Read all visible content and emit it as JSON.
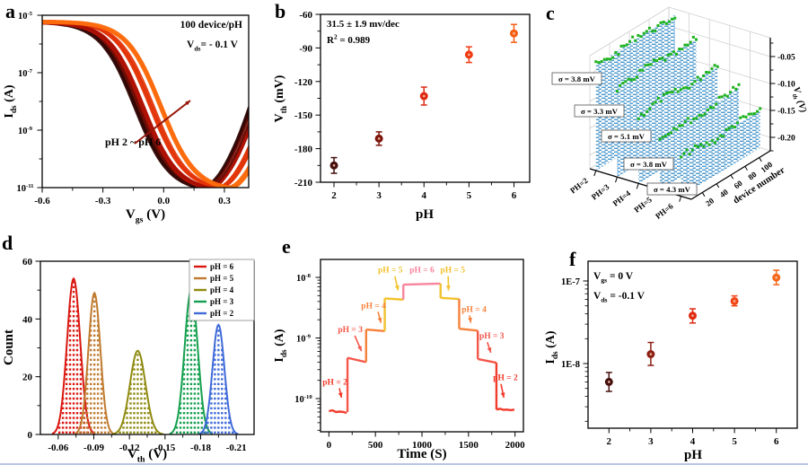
{
  "figure": {
    "panel_labels": [
      "a",
      "b",
      "c",
      "d",
      "e",
      "f"
    ],
    "background": "#ffffff",
    "bottom_rule_color": "#b9c7e6"
  },
  "chart_data": [
    {
      "panel": "a",
      "type": "line",
      "log_y": true,
      "xlabel": {
        "pre": "V",
        "sub": "gs",
        "post": " (V)"
      },
      "ylabel": {
        "pre": "I",
        "sub": "ds",
        "post": " (A)"
      },
      "xlim": [
        -0.6,
        0.42
      ],
      "ylim_exp": [
        -11,
        -5
      ],
      "x_ticks": [
        {
          "v": -0.6,
          "label": "-0.6"
        },
        {
          "v": -0.3,
          "label": "-0.3"
        },
        {
          "v": 0.0,
          "label": "0.0"
        },
        {
          "v": 0.3,
          "label": "0.3"
        }
      ],
      "x_minor_ticks": [
        -0.45,
        -0.15,
        0.15
      ],
      "y_ticks": [
        {
          "exp": -5,
          "label_exp": "-5"
        },
        {
          "exp": -7,
          "label_exp": "-7"
        },
        {
          "exp": -9,
          "label_exp": "-9"
        },
        {
          "exp": -11,
          "label_exp": "-11"
        }
      ],
      "y_minor_ticks": [
        -6,
        -8,
        -10
      ],
      "annotation_device": "100 device/pH",
      "annotation_vds": {
        "pre": "V",
        "sub": "ds",
        "post": "= - 0.1 V"
      },
      "annotation_range": "pH 2 ~ pH 6",
      "arrow_color": "#97150a",
      "curves_per_series": 8,
      "series": [
        {
          "name": "pH 2",
          "color": "#310806",
          "center": -0.135
        },
        {
          "name": "pH 3",
          "color": "#6e0e06",
          "center": -0.118
        },
        {
          "name": "pH 4",
          "color": "#b01205",
          "center": -0.098
        },
        {
          "name": "pH 5",
          "color": "#e33509",
          "center": -0.06
        },
        {
          "name": "pH 6",
          "color": "#fc6c0e",
          "center": -0.015
        }
      ]
    },
    {
      "panel": "b",
      "type": "scatter",
      "annotation_sensitivity": "31.5  ± 1.9 mv/dec",
      "annotation_r2": {
        "pre": "R",
        "sup": "2",
        "post": " = 0.989"
      },
      "xlabel": "pH",
      "ylabel": {
        "pre": "V",
        "sub": "th",
        "post": " (mV)"
      },
      "xlim": [
        1.7,
        6.35
      ],
      "ylim": [
        -210,
        -60
      ],
      "x_ticks": [
        {
          "v": 2,
          "label": "2"
        },
        {
          "v": 3,
          "label": "3"
        },
        {
          "v": 4,
          "label": "4"
        },
        {
          "v": 5,
          "label": "5"
        },
        {
          "v": 6,
          "label": "6"
        }
      ],
      "y_ticks": [
        {
          "v": -60,
          "label": "-60"
        },
        {
          "v": -90,
          "label": "-90"
        },
        {
          "v": -120,
          "label": "-120"
        },
        {
          "v": -150,
          "label": "-150"
        },
        {
          "v": -180,
          "label": "-180"
        },
        {
          "v": -210,
          "label": "-210"
        }
      ],
      "x": [
        2,
        3,
        4,
        5,
        6
      ],
      "y": [
        -195,
        -171,
        -133,
        -96,
        -77
      ],
      "yerr": [
        7,
        6,
        8,
        7,
        8
      ],
      "colors": [
        "#45100d",
        "#7e150c",
        "#e02a12",
        "#f03b12",
        "#f75d12"
      ]
    },
    {
      "panel": "c",
      "type": "3d-waterfall",
      "sigma_labels": [
        "σ = 3.8 mV",
        "σ = 3.3 mV",
        "σ = 5.1 mV",
        "σ = 3.8 mV",
        "σ = 4.3 mV"
      ],
      "ph_labels": [
        "PH=2",
        "PH=3",
        "PH=4",
        "PH=5",
        "PH=6"
      ],
      "device_ticks": [
        "20",
        "40",
        "60",
        "80",
        "100"
      ],
      "device_axis_label": "device number",
      "zlabel": {
        "pre": "V",
        "sub": "th",
        "post": " (V)"
      },
      "z_ticks": [
        "-0.20",
        "-0.15",
        "-0.10",
        "-0.05"
      ],
      "vth_per_ph": [
        -0.195,
        -0.171,
        -0.133,
        -0.096,
        -0.077
      ],
      "curtain_color": "#3b8fc9",
      "marker_color": "#1db31d",
      "curtain_heights": [
        118,
        100,
        76,
        56,
        42
      ]
    },
    {
      "panel": "d",
      "type": "histogram",
      "xlabel": {
        "pre": "V",
        "sub": "th",
        "post": " (V)"
      },
      "ylabel": "Count",
      "xlim": [
        -0.045,
        -0.225
      ],
      "ylim": [
        0,
        60
      ],
      "x_ticks": [
        {
          "v": -0.06,
          "label": "-0.06"
        },
        {
          "v": -0.09,
          "label": "-0.09"
        },
        {
          "v": -0.12,
          "label": "-0.12"
        },
        {
          "v": -0.15,
          "label": "-0.15"
        },
        {
          "v": -0.18,
          "label": "-0.18"
        },
        {
          "v": -0.21,
          "label": "-0.21"
        }
      ],
      "y_ticks": [
        {
          "v": 0,
          "label": "0"
        },
        {
          "v": 20,
          "label": "20"
        },
        {
          "v": 40,
          "label": "40"
        },
        {
          "v": 60,
          "label": "60"
        }
      ],
      "series": [
        {
          "label": "pH = 6",
          "color": "#da1710",
          "center": -0.073,
          "sigma": 0.0055,
          "height": 54
        },
        {
          "label": "pH = 5",
          "color": "#bf7a2e",
          "center": -0.0905,
          "sigma": 0.005,
          "height": 49
        },
        {
          "label": "pH = 4",
          "color": "#8f8a10",
          "center": -0.127,
          "sigma": 0.0065,
          "height": 29
        },
        {
          "label": "pH = 3",
          "color": "#14a04e",
          "center": -0.172,
          "sigma": 0.0055,
          "height": 50
        },
        {
          "label": "pH = 2",
          "color": "#3f6ad8",
          "center": -0.195,
          "sigma": 0.005,
          "height": 38
        }
      ]
    },
    {
      "panel": "e",
      "type": "step",
      "xlabel": "Time (S)",
      "ylabel": {
        "pre": "I",
        "sub": "ds",
        "post": " (A)"
      },
      "xlim": [
        -90,
        2090
      ],
      "x_ticks": [
        {
          "v": 0,
          "label": "0"
        },
        {
          "v": 500,
          "label": "500"
        },
        {
          "v": 1000,
          "label": "1000"
        },
        {
          "v": 1500,
          "label": "1500"
        },
        {
          "v": 2000,
          "label": "2000"
        }
      ],
      "x_minor_ticks": [
        250,
        750,
        1250,
        1750
      ],
      "y_ticks": [
        {
          "exp": -8,
          "label_exp": "-8"
        },
        {
          "exp": -9,
          "label_exp": "-9"
        },
        {
          "exp": -10,
          "label_exp": "-10"
        }
      ],
      "steps": [
        {
          "t0": 0,
          "t1": 200,
          "i0": 6.2e-11,
          "i1": 6e-11,
          "color": "#f23b2b",
          "noisy": true,
          "ph": "pH = 2"
        },
        {
          "t0": 200,
          "t1": 400,
          "i0": 4.7e-10,
          "i1": 4e-10,
          "color": "#f5564a",
          "noisy": false,
          "ph": "pH = 3"
        },
        {
          "t0": 400,
          "t1": 600,
          "i0": 1.38e-09,
          "i1": 1.3e-09,
          "color": "#f6813b",
          "noisy": false,
          "ph": "pH = 4"
        },
        {
          "t0": 600,
          "t1": 800,
          "i0": 4.5e-09,
          "i1": 4.3e-09,
          "color": "#f2c22e",
          "noisy": false,
          "ph": "pH = 5"
        },
        {
          "t0": 800,
          "t1": 1200,
          "i0": 7.6e-09,
          "i1": 7.9e-09,
          "color": "#f8849b",
          "noisy": false,
          "ph": "pH = 6"
        },
        {
          "t0": 1200,
          "t1": 1400,
          "i0": 4.6e-09,
          "i1": 4.4e-09,
          "color": "#f2c22e",
          "noisy": false,
          "ph": "pH = 5"
        },
        {
          "t0": 1400,
          "t1": 1600,
          "i0": 1.42e-09,
          "i1": 1.32e-09,
          "color": "#f6813b",
          "noisy": false,
          "ph": "pH = 4"
        },
        {
          "t0": 1600,
          "t1": 1800,
          "i0": 4.5e-10,
          "i1": 3.9e-10,
          "color": "#f5564a",
          "noisy": false,
          "ph": "pH = 3"
        },
        {
          "t0": 1800,
          "t1": 2000,
          "i0": 6.6e-11,
          "i1": 6.3e-11,
          "color": "#f23b2b",
          "noisy": true,
          "ph": "pH = 2"
        }
      ],
      "labels": [
        {
          "text": "pH = 2",
          "color": "#f23b2b",
          "t": 65,
          "i": 1.7e-10,
          "at": 135,
          "ai": 9e-11
        },
        {
          "text": "pH = 3",
          "color": "#f5564a",
          "t": 230,
          "i": 1.25e-09,
          "at": 350,
          "ai": 5.3e-10
        },
        {
          "text": "pH = 4",
          "color": "#f6813b",
          "t": 480,
          "i": 3.1e-09,
          "at": 560,
          "ai": 1.55e-09
        },
        {
          "text": "pH = 5",
          "color": "#f2c22e",
          "t": 660,
          "i": 1.2e-08,
          "at": 745,
          "ai": 5.3e-09
        },
        {
          "text": "pH = 6",
          "color": "#f8849b",
          "t": 1000,
          "i": 1.2e-08
        },
        {
          "text": "pH = 5",
          "color": "#f2c22e",
          "t": 1330,
          "i": 1.2e-08,
          "at": 1285,
          "ai": 5.3e-09
        },
        {
          "text": "pH = 4",
          "color": "#f6813b",
          "t": 1560,
          "i": 2.7e-09,
          "at": 1525,
          "ai": 1.55e-09
        },
        {
          "text": "pH = 3",
          "color": "#f5564a",
          "t": 1750,
          "i": 9.8e-10,
          "at": 1740,
          "ai": 5e-10
        },
        {
          "text": "pH = 2",
          "color": "#f23b2b",
          "t": 1897,
          "i": 2e-10,
          "at": 1880,
          "ai": 9e-11
        }
      ]
    },
    {
      "panel": "f",
      "type": "scatter-log",
      "annotation_vgs": {
        "pre": "V",
        "sub": "gs",
        "post": " = 0 V"
      },
      "annotation_vds": {
        "pre": "V",
        "sub": "ds",
        "post": " = -0.1 V"
      },
      "xlabel": "pH",
      "ylabel": {
        "pre": "I",
        "sub": "ds",
        "post": " (A)"
      },
      "xlim": [
        1.5,
        6.5
      ],
      "x_ticks": [
        {
          "v": 2,
          "label": "2"
        },
        {
          "v": 3,
          "label": "3"
        },
        {
          "v": 4,
          "label": "4"
        },
        {
          "v": 5,
          "label": "5"
        },
        {
          "v": 6,
          "label": "6"
        }
      ],
      "y_ticks": [
        {
          "v": 1e-07,
          "label": "1E-7"
        },
        {
          "v": 1e-08,
          "label": "1E-8"
        }
      ],
      "x": [
        2,
        3,
        4,
        5,
        6
      ],
      "y": [
        6e-09,
        1.3e-08,
        3.8e-08,
        5.7e-08,
        1.1e-07
      ],
      "err_lo": [
        4.6e-09,
        9.5e-09,
        3.1e-08,
        5e-08,
        9e-08
      ],
      "err_hi": [
        7.8e-09,
        1.8e-08,
        4.6e-08,
        6.6e-08,
        1.35e-07
      ],
      "colors": [
        "#45100d",
        "#8c2014",
        "#e02a12",
        "#f24617",
        "#f4681c"
      ]
    }
  ]
}
